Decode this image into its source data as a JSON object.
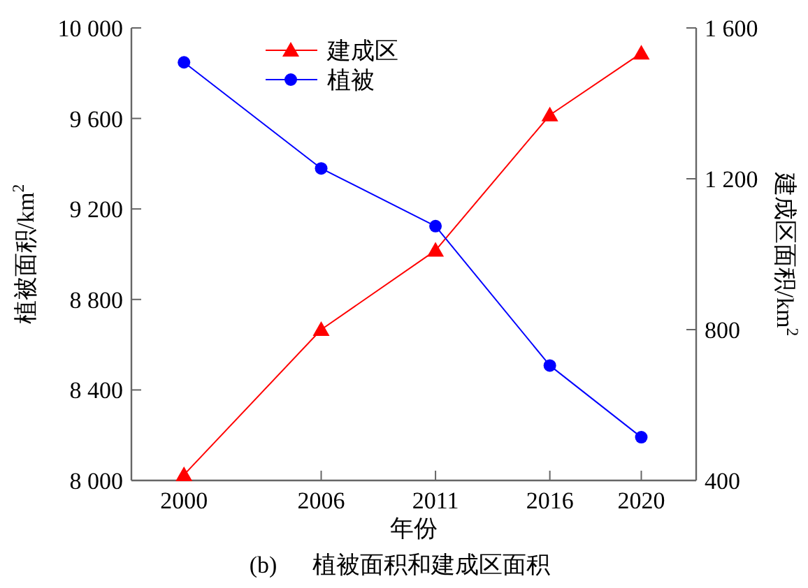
{
  "chart_data": {
    "type": "line",
    "xlabel": "年份",
    "ylabel": "植被面积/km$^{2}$",
    "y2label": "建成区面积/km$^{2}$",
    "annotations": [
      "(b)      植被面积和建成区面积"
    ],
    "x": [
      2000,
      2006,
      2011,
      2016,
      2020
    ],
    "xlim": [
      1997.7,
      2022.4
    ],
    "xticks": [
      2000,
      2006,
      2011,
      2016,
      2020
    ],
    "ylim": [
      8000,
      10000
    ],
    "yticks": [
      {
        "value": 8000,
        "label": "8 000"
      },
      {
        "value": 8400,
        "label": "8 400"
      },
      {
        "value": 8800,
        "label": "8 800"
      },
      {
        "value": 9200,
        "label": "9 200"
      },
      {
        "value": 9600,
        "label": "9 600"
      },
      {
        "value": 10000,
        "label": "10 000"
      }
    ],
    "y2lim": [
      400,
      1600
    ],
    "y2ticks": [
      400,
      800,
      {
        "value": 1200,
        "label": "1 200"
      },
      {
        "value": 1600,
        "label": "1 600"
      }
    ],
    "series": [
      {
        "name": "建成区",
        "color": "#ff0000",
        "axis": "y2",
        "marker": "triangle",
        "values": [
          415,
          800,
          1010,
          1369,
          1533
        ]
      },
      {
        "name": "植被",
        "color": "#0000ff",
        "marker": "circle",
        "values": [
          9848,
          9379,
          9124,
          8508,
          8191
        ]
      }
    ],
    "legend": "top",
    "grid": false,
    "line_style": "solid"
  }
}
